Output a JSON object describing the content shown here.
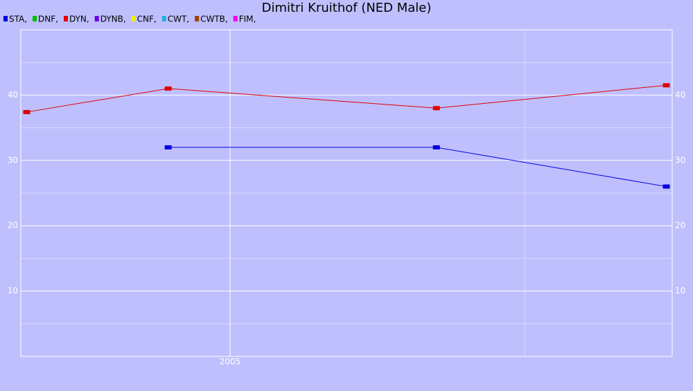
{
  "chart_data": {
    "type": "line",
    "title": "Dimitri Kruithof (NED Male)",
    "series": [
      {
        "name": "STA,",
        "color": "#0000e0",
        "x": [
          2004.79,
          2005.7,
          2006.48
        ],
        "values": [
          32,
          32,
          26
        ]
      },
      {
        "name": "DNF,",
        "color": "#00c000",
        "x": [],
        "values": []
      },
      {
        "name": "DYN,",
        "color": "#e00000",
        "x": [
          2004.31,
          2004.79,
          2005.7,
          2006.48
        ],
        "values": [
          37.4,
          41,
          38,
          41.5
        ]
      },
      {
        "name": "DYNB,",
        "color": "#6a00e0",
        "x": [],
        "values": []
      },
      {
        "name": "CNF,",
        "color": "#f0f000",
        "x": [],
        "values": []
      },
      {
        "name": "CWT,",
        "color": "#20b0e0",
        "x": [],
        "values": []
      },
      {
        "name": "CWTB,",
        "color": "#a04000",
        "x": [],
        "values": []
      },
      {
        "name": "FIM,",
        "color": "#f000f0",
        "x": [],
        "values": []
      }
    ],
    "xlim": [
      2004.29,
      2006.5
    ],
    "xticks": [
      2005
    ],
    "x_minor_ticks": [
      2006
    ],
    "ylim": [
      0,
      50
    ],
    "yticks": [
      10,
      20,
      30,
      40
    ],
    "y_minor_ticks": [
      5,
      15,
      25,
      35,
      45
    ],
    "grid": true,
    "legend": "top-left"
  }
}
